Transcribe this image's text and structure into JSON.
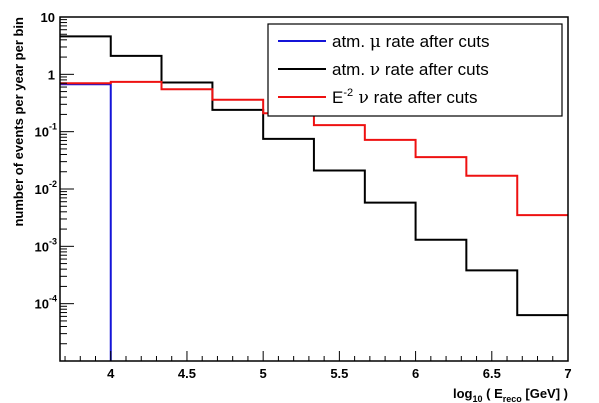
{
  "chart_data": {
    "type": "line",
    "step": true,
    "xlabel": "log₁₀ ( Eᵣₑᶜₒ [GeV] )",
    "xlabel_parts": {
      "pre": "log",
      "sub1": "10",
      "mid": " ( E",
      "sub2": "reco",
      "post": " [GeV] )"
    },
    "ylabel": "number of events per year per bin",
    "xlim": [
      3.667,
      7.0
    ],
    "ylim": [
      1e-05,
      10
    ],
    "y_scale": "log",
    "grid": false,
    "legend_position": "top-right",
    "x_ticks": [
      {
        "value": 4.0,
        "label": "4"
      },
      {
        "value": 4.5,
        "label": "4.5"
      },
      {
        "value": 5.0,
        "label": "5"
      },
      {
        "value": 5.5,
        "label": "5.5"
      },
      {
        "value": 6.0,
        "label": "6"
      },
      {
        "value": 6.5,
        "label": "6.5"
      },
      {
        "value": 7.0,
        "label": "7"
      }
    ],
    "y_ticks": [
      {
        "value": 10,
        "base": "10",
        "exp": ""
      },
      {
        "value": 1,
        "base": "1",
        "exp": ""
      },
      {
        "value": 0.1,
        "base": "10",
        "exp": "-1"
      },
      {
        "value": 0.01,
        "base": "10",
        "exp": "-2"
      },
      {
        "value": 0.001,
        "base": "10",
        "exp": "-3"
      },
      {
        "value": 0.0001,
        "base": "10",
        "exp": "-4"
      }
    ],
    "bin_edges": [
      3.667,
      4.0,
      4.333,
      4.667,
      5.0,
      5.333,
      5.667,
      6.0,
      6.333,
      6.667,
      7.0
    ],
    "series": [
      {
        "name": "atm. μ rate after cuts",
        "legend_parts": {
          "pre": "atm. ",
          "greek": "μ",
          "post": " rate after cuts"
        },
        "color": "#1414d8",
        "values": [
          0.67,
          null,
          null,
          null,
          null,
          null,
          null,
          null,
          null,
          null
        ]
      },
      {
        "name": "atm. ν rate after cuts",
        "legend_parts": {
          "pre": "atm. ",
          "greek": "ν",
          "post": " rate after cuts"
        },
        "color": "#000000",
        "values": [
          4.6,
          2.1,
          0.72,
          0.24,
          0.075,
          0.021,
          0.0058,
          0.0013,
          0.00038,
          6.3e-05
        ]
      },
      {
        "name": "E⁻² ν rate after cuts",
        "legend_parts": {
          "pre": "E",
          "sup": "-2",
          "greek": " ν",
          "post": " rate after cuts"
        },
        "color": "#ee1111",
        "values": [
          0.7,
          0.74,
          0.55,
          0.36,
          0.21,
          0.13,
          0.072,
          0.036,
          0.017,
          0.0035
        ]
      }
    ]
  }
}
